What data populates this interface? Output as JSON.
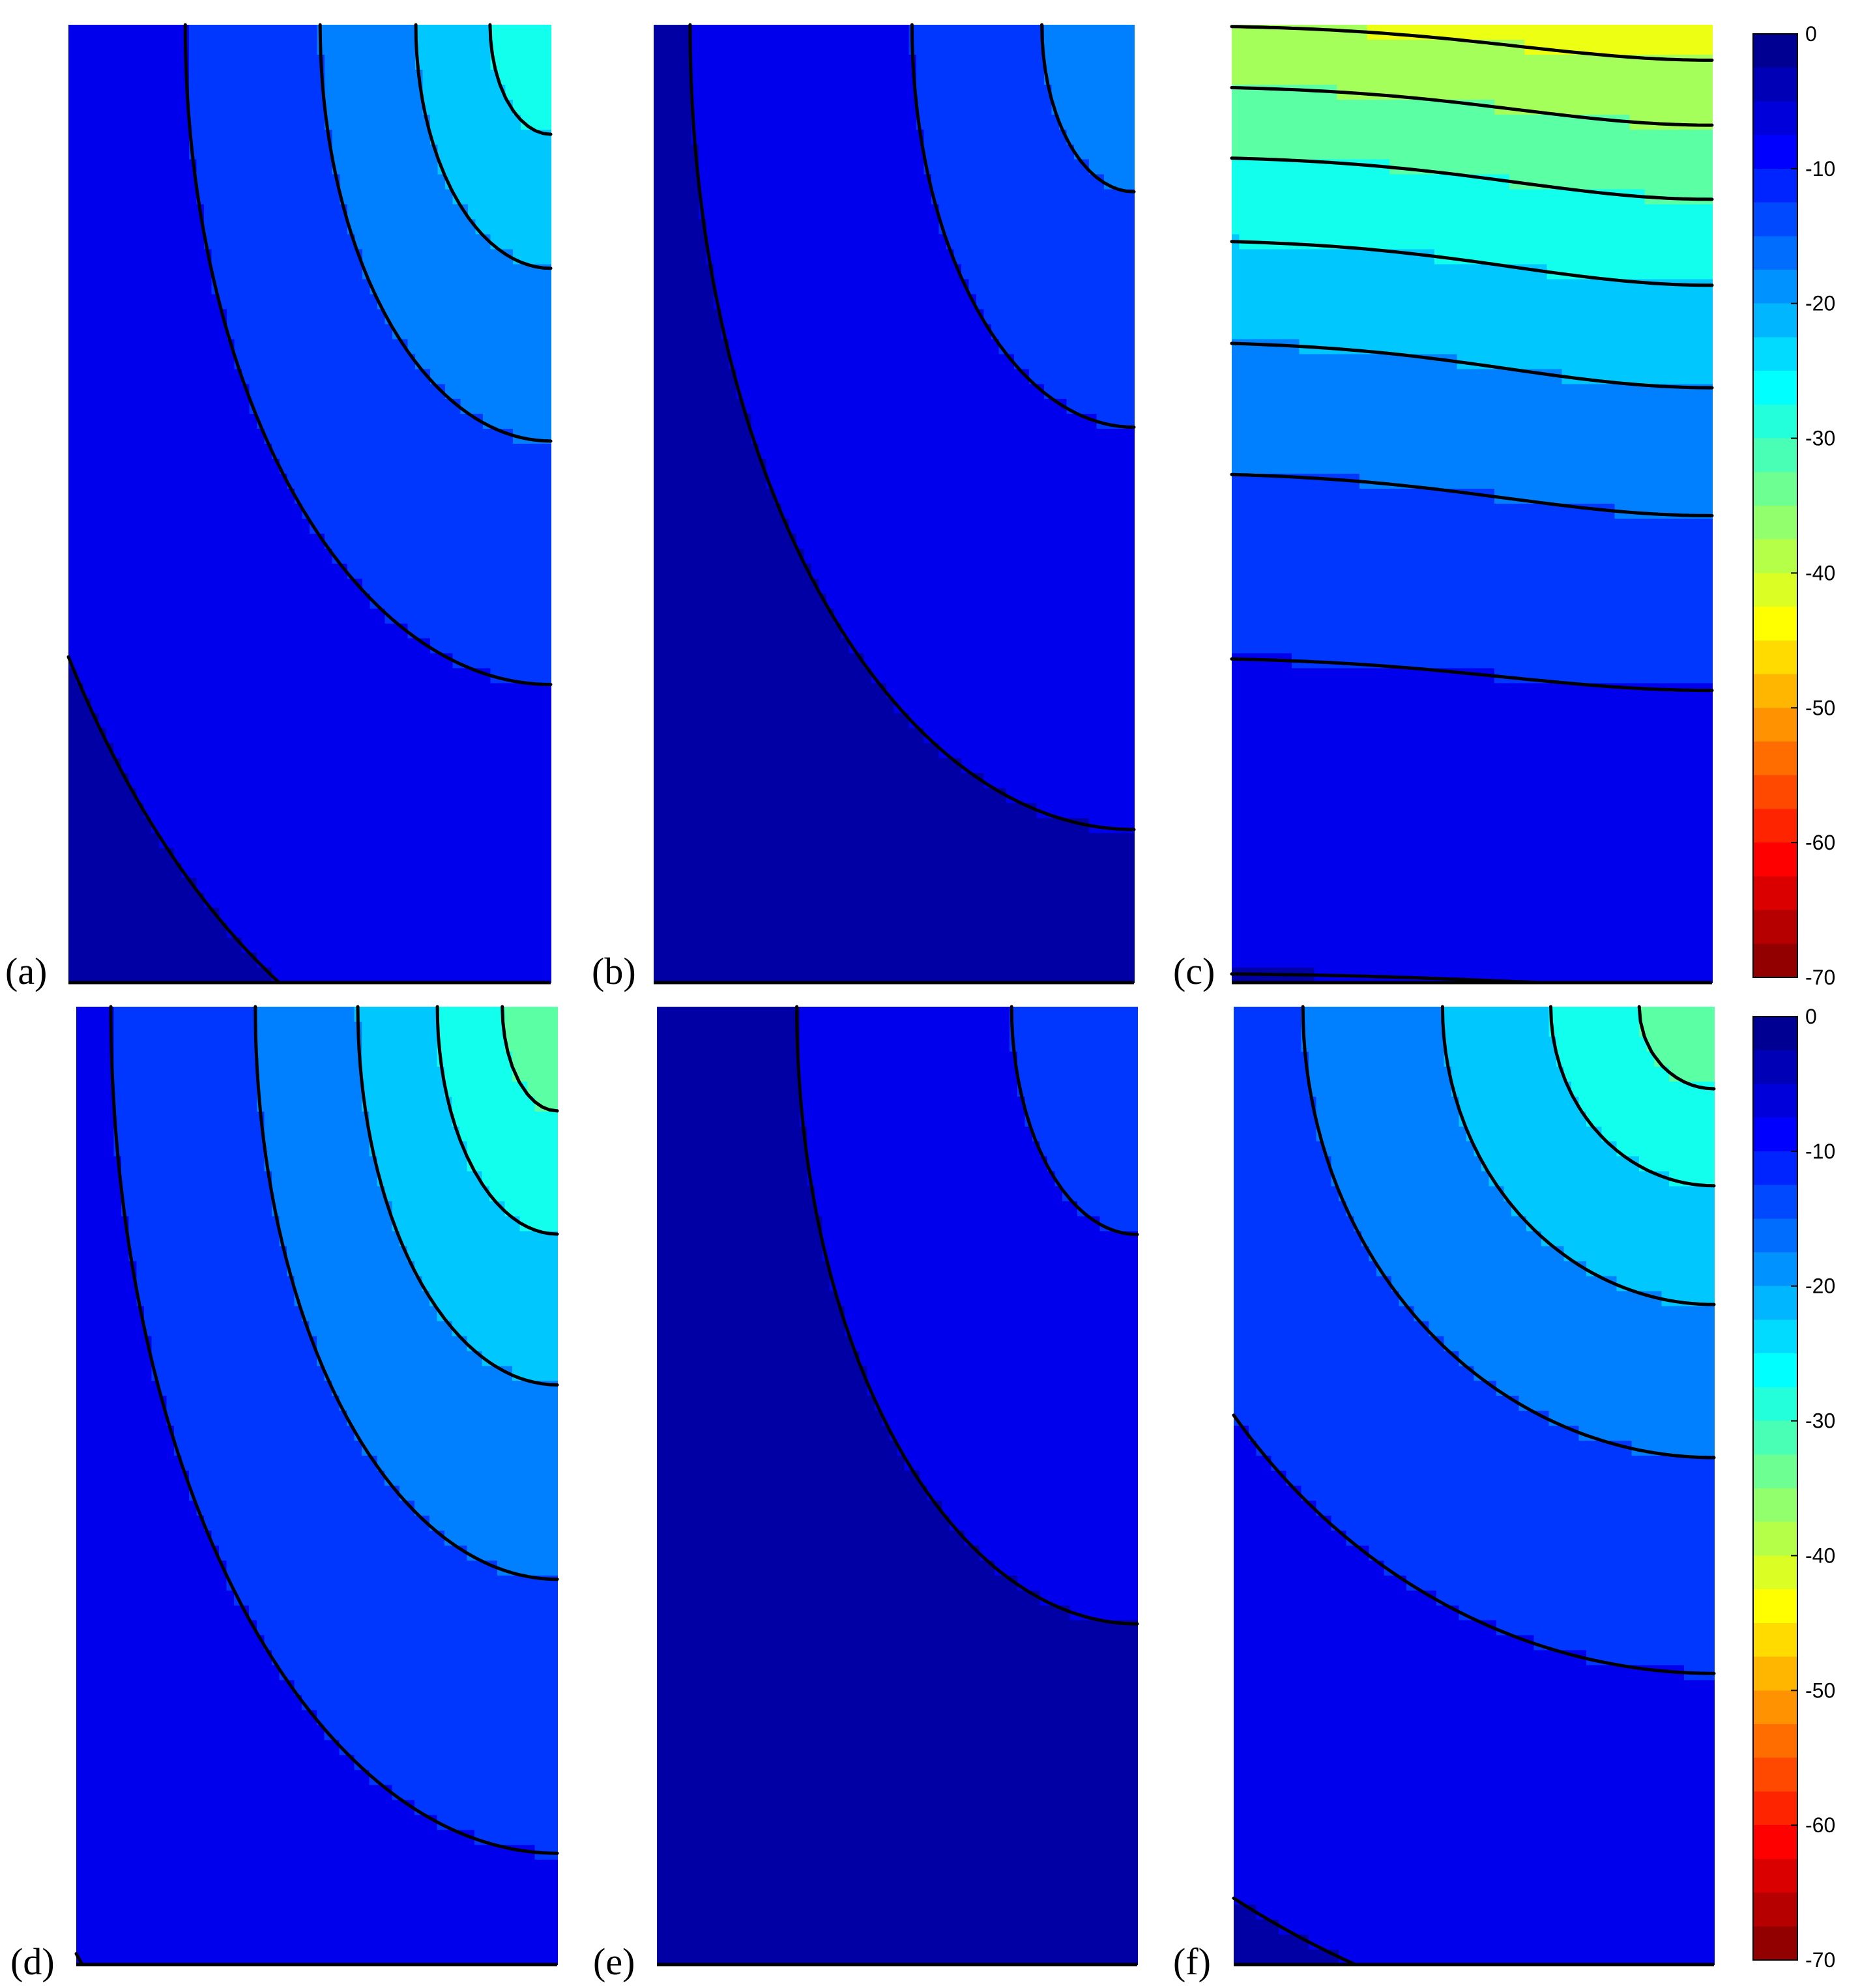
{
  "figure": {
    "panel_labels": [
      "(a)",
      "(b)",
      "(c)",
      "(d)",
      "(e)",
      "(f)"
    ],
    "colorbar": {
      "colormap": "jet (reversed: 0 = dark blue, -70 = dark red)",
      "min": -70,
      "max": 0,
      "tick_labels": [
        "0",
        "-10",
        "-20",
        "-30",
        "-40",
        "-50",
        "-60",
        "-70"
      ]
    }
  },
  "chart_data": [
    {
      "type": "heatmap",
      "subtype": "filled contour",
      "panel": "(a)",
      "colorbar_range": [
        -70,
        0
      ],
      "contour_step": 5,
      "contour_shape": "quarter-circle arcs centred on top-right corner",
      "contour_levels": [
        -5,
        -10,
        -15,
        -20,
        -25,
        -30
      ],
      "max_magnitude_region": "top-right corner",
      "max_value_approx": -30,
      "min_value_approx": 0,
      "axes_ticks_shown": false
    },
    {
      "type": "heatmap",
      "subtype": "filled contour",
      "panel": "(b)",
      "colorbar_range": [
        -70,
        0
      ],
      "contour_step": 5,
      "contour_shape": "quarter-circle arcs centred on top-right corner",
      "contour_levels": [
        -5,
        -10,
        -15,
        -20
      ],
      "max_magnitude_region": "top-right corner",
      "max_value_approx": -20,
      "min_value_approx": 0,
      "axes_ticks_shown": false
    },
    {
      "type": "heatmap",
      "subtype": "filled contour",
      "panel": "(c)",
      "colorbar_range": [
        -70,
        0
      ],
      "contour_step": 5,
      "contour_shape": "nearly horizontal bands",
      "contour_levels": [
        -5,
        -10,
        -15,
        -20,
        -25,
        -30,
        -35,
        -40
      ],
      "max_magnitude_region": "top",
      "max_value_approx": -40,
      "min_value_approx": 0,
      "axes_ticks_shown": false
    },
    {
      "type": "heatmap",
      "subtype": "filled contour",
      "panel": "(d)",
      "colorbar_range": [
        -70,
        0
      ],
      "contour_step": 5,
      "contour_shape": "quarter-circle arcs centred on top-right corner",
      "contour_levels": [
        -5,
        -10,
        -15,
        -20,
        -25,
        -30,
        -35
      ],
      "max_magnitude_region": "top-right corner",
      "max_value_approx": -35,
      "min_value_approx": 0,
      "axes_ticks_shown": false
    },
    {
      "type": "heatmap",
      "subtype": "filled contour",
      "panel": "(e)",
      "colorbar_range": [
        -70,
        0
      ],
      "contour_step": 5,
      "contour_shape": "quarter-circle arcs centred on top-right corner",
      "contour_levels": [
        -5,
        -10,
        -15
      ],
      "max_magnitude_region": "top-right corner",
      "max_value_approx": -15,
      "min_value_approx": 0,
      "axes_ticks_shown": false
    },
    {
      "type": "heatmap",
      "subtype": "filled contour",
      "panel": "(f)",
      "colorbar_range": [
        -70,
        0
      ],
      "contour_step": 5,
      "contour_shape": "arcs near top-right, flattening to horizontal bands lower down",
      "contour_levels": [
        -5,
        -10,
        -15,
        -20,
        -25,
        -30,
        -35
      ],
      "max_magnitude_region": "top-right corner",
      "max_value_approx": -35,
      "min_value_approx": 0,
      "axes_ticks_shown": false
    }
  ]
}
